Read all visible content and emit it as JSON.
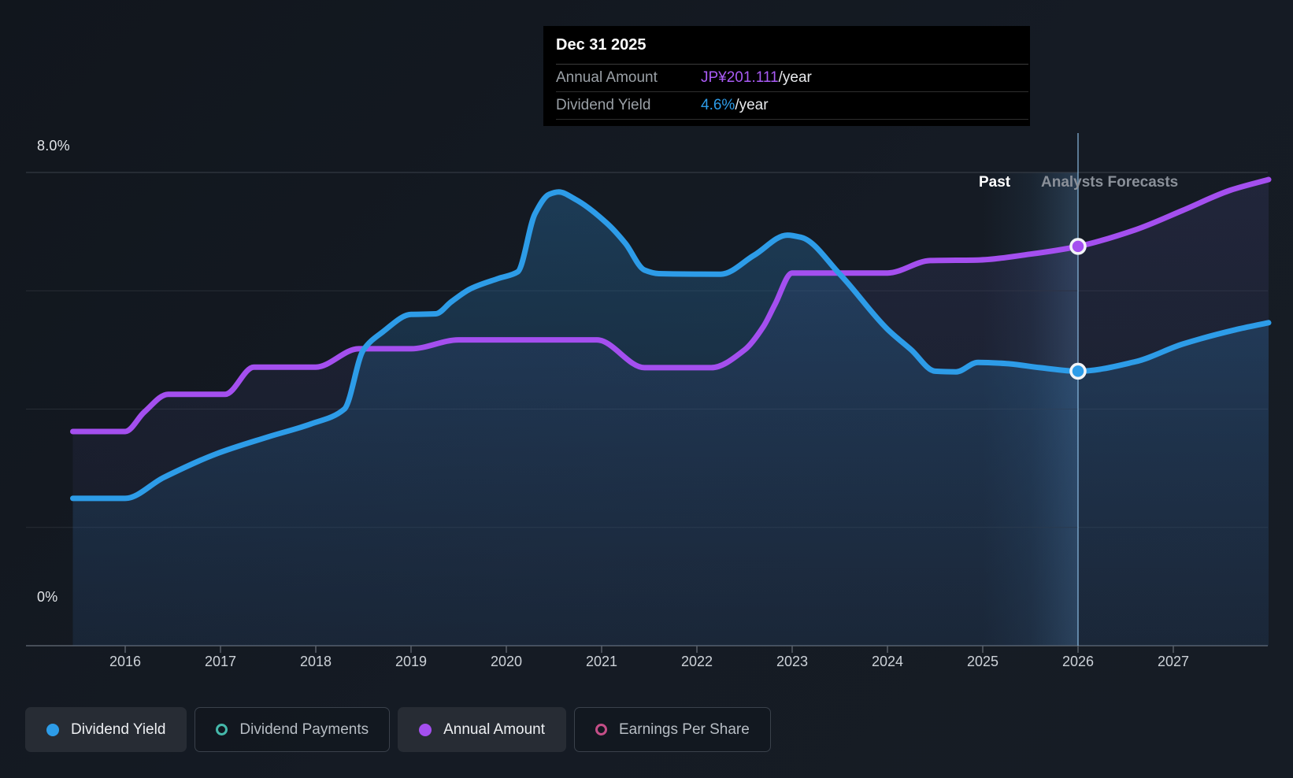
{
  "tooltip": {
    "date": "Dec 31 2025",
    "rows": [
      {
        "label": "Annual Amount",
        "value": "JP¥201.111",
        "suffix": "/year",
        "color": "#a95bf5"
      },
      {
        "label": "Dividend Yield",
        "value": "4.6%",
        "suffix": "/year",
        "color": "#2d9ce8"
      }
    ]
  },
  "axis": {
    "y_top_label": "8.0%",
    "y_bottom_label": "0%",
    "years": [
      "2016",
      "2017",
      "2018",
      "2019",
      "2020",
      "2021",
      "2022",
      "2023",
      "2024",
      "2025",
      "2026",
      "2027"
    ]
  },
  "annotations": {
    "past": "Past",
    "forecast": "Analysts Forecasts"
  },
  "legend": [
    {
      "label": "Dividend Yield",
      "color": "#2d9ce8",
      "active": true,
      "filled": true
    },
    {
      "label": "Dividend Payments",
      "color": "#45b8aa",
      "active": false,
      "filled": false
    },
    {
      "label": "Annual Amount",
      "color": "#a44fef",
      "active": true,
      "filled": true
    },
    {
      "label": "Earnings Per Share",
      "color": "#c44e87",
      "active": false,
      "filled": false
    }
  ],
  "chart_data": {
    "type": "area",
    "title": "Dividend history and forecast",
    "x_range": [
      2015.45,
      2028.0
    ],
    "ylim": [
      0,
      8
    ],
    "y_gridlines_pct": [
      8,
      6,
      4,
      2,
      0
    ],
    "divider_year": 2026,
    "highlight_band_years": [
      2025,
      2026
    ],
    "hover_point": {
      "date": "Dec 31 2025",
      "year": 2026,
      "dividend_yield_pct": 4.6,
      "annual_amount": "JP¥201.111/year"
    },
    "series": [
      {
        "name": "Dividend Yield",
        "unit": "percent",
        "color": "#2d9ce8",
        "points": [
          [
            2015.45,
            2.49
          ],
          [
            2016.0,
            2.49
          ],
          [
            2016.4,
            2.84
          ],
          [
            2016.95,
            3.24
          ],
          [
            2017.5,
            3.53
          ],
          [
            2017.95,
            3.75
          ],
          [
            2018.3,
            4.0
          ],
          [
            2018.5,
            5.0
          ],
          [
            2018.7,
            5.3
          ],
          [
            2019.0,
            5.6
          ],
          [
            2019.26,
            5.61
          ],
          [
            2019.42,
            5.81
          ],
          [
            2019.62,
            6.03
          ],
          [
            2019.92,
            6.21
          ],
          [
            2020.12,
            6.32
          ],
          [
            2020.3,
            7.3
          ],
          [
            2020.45,
            7.63
          ],
          [
            2020.55,
            7.67
          ],
          [
            2020.72,
            7.55
          ],
          [
            2021.05,
            7.15
          ],
          [
            2021.25,
            6.8
          ],
          [
            2021.45,
            6.35
          ],
          [
            2021.6,
            6.29
          ],
          [
            2022.25,
            6.28
          ],
          [
            2022.6,
            6.6
          ],
          [
            2022.95,
            6.94
          ],
          [
            2023.1,
            6.9
          ],
          [
            2023.5,
            6.28
          ],
          [
            2024.0,
            5.35
          ],
          [
            2024.25,
            5.0
          ],
          [
            2024.5,
            4.64
          ],
          [
            2024.72,
            4.63
          ],
          [
            2024.95,
            4.79
          ],
          [
            2025.25,
            4.77
          ],
          [
            2025.6,
            4.7
          ],
          [
            2026.0,
            4.64
          ],
          [
            2026.6,
            4.8
          ],
          [
            2027.1,
            5.1
          ],
          [
            2027.65,
            5.34
          ],
          [
            2028.0,
            5.46
          ]
        ]
      },
      {
        "name": "Annual Amount",
        "unit": "plotted on hidden JP¥ scale (percent-equivalent positions)",
        "color": "#a44fef",
        "points": [
          [
            2015.45,
            3.62
          ],
          [
            2016.0,
            3.62
          ],
          [
            2016.2,
            3.95
          ],
          [
            2016.45,
            4.25
          ],
          [
            2017.05,
            4.25
          ],
          [
            2017.35,
            4.71
          ],
          [
            2018.0,
            4.71
          ],
          [
            2018.45,
            5.02
          ],
          [
            2019.0,
            5.02
          ],
          [
            2019.5,
            5.17
          ],
          [
            2020.95,
            5.17
          ],
          [
            2021.45,
            4.7
          ],
          [
            2022.15,
            4.7
          ],
          [
            2022.5,
            5.0
          ],
          [
            2022.7,
            5.4
          ],
          [
            2022.82,
            5.77
          ],
          [
            2023.0,
            6.3
          ],
          [
            2024.0,
            6.3
          ],
          [
            2024.45,
            6.51
          ],
          [
            2024.95,
            6.52
          ],
          [
            2025.5,
            6.62
          ],
          [
            2026.0,
            6.75
          ],
          [
            2026.6,
            7.03
          ],
          [
            2027.1,
            7.36
          ],
          [
            2027.6,
            7.7
          ],
          [
            2028.0,
            7.88
          ]
        ]
      }
    ],
    "markers": [
      {
        "series": "Annual Amount",
        "year": 2026,
        "value": 6.75,
        "color": "#a44fef"
      },
      {
        "series": "Dividend Yield",
        "year": 2026,
        "value": 4.64,
        "color": "#2d9ce8"
      }
    ]
  }
}
